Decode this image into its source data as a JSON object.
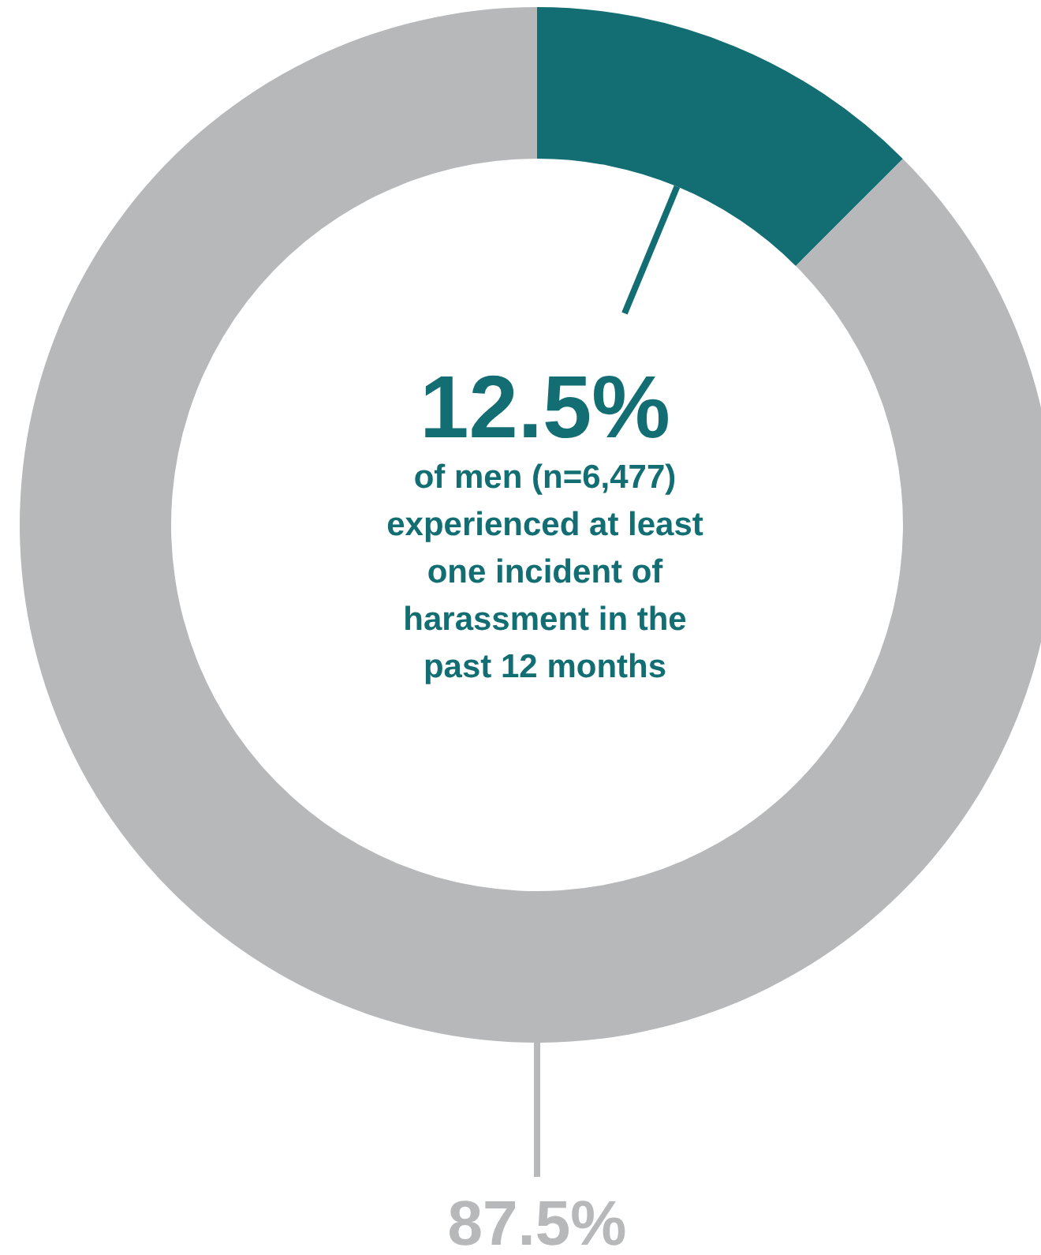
{
  "chart_data": {
    "type": "donut",
    "categories": [
      null,
      null
    ],
    "values": [
      12.5,
      87.5
    ],
    "colors": [
      "#126e73",
      "#b7b8ba"
    ],
    "value_labels": [
      "12.5%",
      "87.5%"
    ],
    "annotations": [
      "of men (n=6,477) experienced at least one incident of harassment in the past 12 months"
    ]
  }
}
